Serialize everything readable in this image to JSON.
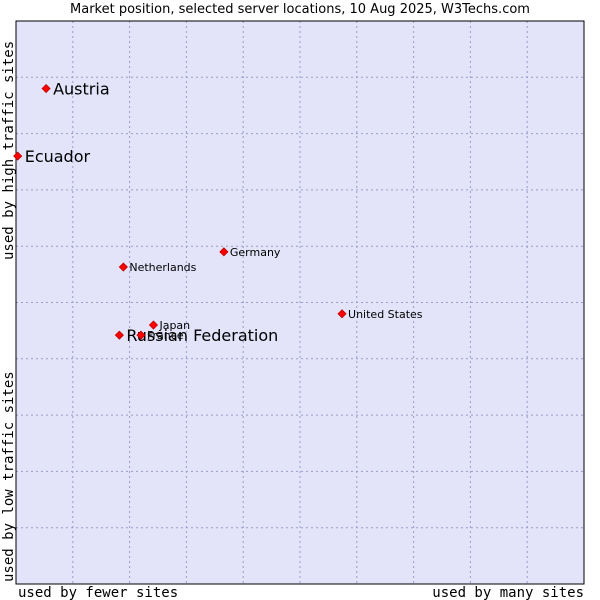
{
  "chart_data": {
    "type": "scatter",
    "title": "Market position, selected server locations, 10 Aug 2025, W3Techs.com",
    "xlabel_left": "used by fewer sites",
    "xlabel_right": "used by many sites",
    "ylabel_bottom": "used by low traffic sites",
    "ylabel_top": "used by high traffic sites",
    "xlim": [
      0,
      10
    ],
    "ylim": [
      0,
      10
    ],
    "grid": true,
    "colors": {
      "plot_background": "#e3e4fa",
      "grid": "#9a9ac8",
      "border": "#000000",
      "marker": "#ff0000",
      "marker_edge": "#bb0000"
    },
    "points": [
      {
        "label": "Austria",
        "x": 0.53,
        "y": 8.8,
        "emphasis": true
      },
      {
        "label": "Ecuador",
        "x": 0.03,
        "y": 7.6,
        "emphasis": true
      },
      {
        "label": "Germany",
        "x": 3.66,
        "y": 5.9,
        "emphasis": false
      },
      {
        "label": "Netherlands",
        "x": 1.89,
        "y": 5.63,
        "emphasis": false
      },
      {
        "label": "United States",
        "x": 5.74,
        "y": 4.8,
        "emphasis": false
      },
      {
        "label": "Japan",
        "x": 2.42,
        "y": 4.6,
        "emphasis": false
      },
      {
        "label": "Russian Federation",
        "x": 1.82,
        "y": 4.42,
        "emphasis": true
      },
      {
        "label": "France",
        "x": 2.2,
        "y": 4.42,
        "emphasis": false
      }
    ]
  }
}
